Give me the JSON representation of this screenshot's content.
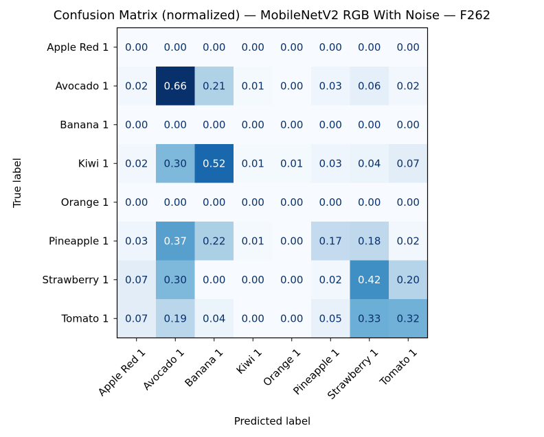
{
  "chart_data": {
    "type": "heatmap",
    "title": "Confusion Matrix (normalized) — MobileNetV2 RGB With Noise — F262",
    "xlabel": "Predicted label",
    "ylabel": "True label",
    "x_categories": [
      "Apple Red 1",
      "Avocado 1",
      "Banana 1",
      "Kiwi 1",
      "Orange 1",
      "Pineapple 1",
      "Strawberry 1",
      "Tomato 1"
    ],
    "y_categories": [
      "Apple Red 1",
      "Avocado 1",
      "Banana 1",
      "Kiwi 1",
      "Orange 1",
      "Pineapple 1",
      "Strawberry 1",
      "Tomato 1"
    ],
    "values": [
      [
        0.0,
        0.0,
        0.0,
        0.0,
        0.0,
        0.0,
        0.0,
        0.0
      ],
      [
        0.02,
        0.66,
        0.21,
        0.01,
        0.0,
        0.03,
        0.06,
        0.02
      ],
      [
        0.0,
        0.0,
        0.0,
        0.0,
        0.0,
        0.0,
        0.0,
        0.0
      ],
      [
        0.02,
        0.3,
        0.52,
        0.01,
        0.01,
        0.03,
        0.04,
        0.07
      ],
      [
        0.0,
        0.0,
        0.0,
        0.0,
        0.0,
        0.0,
        0.0,
        0.0
      ],
      [
        0.03,
        0.37,
        0.22,
        0.01,
        0.0,
        0.17,
        0.18,
        0.02
      ],
      [
        0.07,
        0.3,
        0.0,
        0.0,
        0.0,
        0.02,
        0.42,
        0.2
      ],
      [
        0.07,
        0.19,
        0.04,
        0.0,
        0.0,
        0.05,
        0.33,
        0.32
      ]
    ],
    "value_range": [
      0,
      0.66
    ],
    "colormap": "Blues",
    "x_tick_rotation_deg": 45
  }
}
